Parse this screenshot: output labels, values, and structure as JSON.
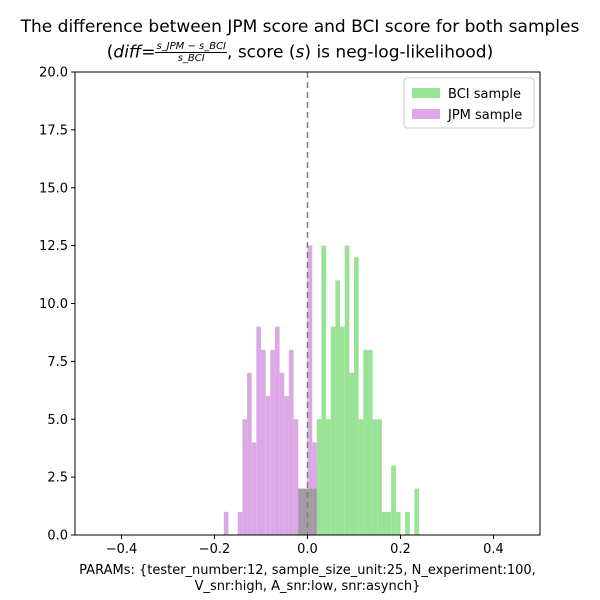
{
  "chart_data": {
    "type": "histogram",
    "title_line1": "The difference between JPM score and BCI score for both samples",
    "title_line2_prefix": "(",
    "title_diff_symbol": "diff",
    "title_equals": "=",
    "title_frac_numerator": "s_JPM − s_BCI",
    "title_frac_denominator": "s_BCI",
    "title_line2_suffix_a": ", score (",
    "title_score_symbol": "s",
    "title_line2_suffix_b": ") is neg-log-likelihood)",
    "xlabel_line1": "PARAMs: {tester_number:12, sample_size_unit:25, N_experiment:100,",
    "xlabel_line2": "V_snr:high, A_snr:low, snr:asynch}",
    "xlim": [
      -0.5,
      0.5
    ],
    "ylim": [
      0,
      20
    ],
    "xticks": [
      -0.4,
      -0.2,
      0.0,
      0.2,
      0.4
    ],
    "xtick_labels": [
      "−0.4",
      "−0.2",
      "0.0",
      "0.2",
      "0.4"
    ],
    "yticks": [
      0,
      2.5,
      5,
      7.5,
      10,
      12.5,
      15,
      17.5,
      20
    ],
    "ytick_labels": [
      "0.0",
      "2.5",
      "5.0",
      "7.5",
      "10.0",
      "12.5",
      "15.0",
      "17.5",
      "20.0"
    ],
    "reference_line": {
      "x": 0.0,
      "style": "dashed",
      "color": "#808080"
    },
    "legend_position": "upper right",
    "series": [
      {
        "name": "BCI sample",
        "color": "#98e395",
        "bin_width": 0.01,
        "bins": [
          {
            "x": -0.02,
            "count": 2
          },
          {
            "x": -0.01,
            "count": 2
          },
          {
            "x": 0.0,
            "count": 3
          },
          {
            "x": 0.01,
            "count": 3
          },
          {
            "x": 0.02,
            "count": 5
          },
          {
            "x": 0.03,
            "count": 12.5
          },
          {
            "x": 0.04,
            "count": 5
          },
          {
            "x": 0.05,
            "count": 9
          },
          {
            "x": 0.06,
            "count": 11
          },
          {
            "x": 0.07,
            "count": 9
          },
          {
            "x": 0.08,
            "count": 12.5
          },
          {
            "x": 0.09,
            "count": 7
          },
          {
            "x": 0.1,
            "count": 12
          },
          {
            "x": 0.11,
            "count": 5
          },
          {
            "x": 0.12,
            "count": 8
          },
          {
            "x": 0.13,
            "count": 8
          },
          {
            "x": 0.14,
            "count": 5
          },
          {
            "x": 0.15,
            "count": 5
          },
          {
            "x": 0.16,
            "count": 1
          },
          {
            "x": 0.17,
            "count": 1
          },
          {
            "x": 0.18,
            "count": 3
          },
          {
            "x": 0.19,
            "count": 1
          },
          {
            "x": 0.2,
            "count": 0
          },
          {
            "x": 0.21,
            "count": 1
          },
          {
            "x": 0.22,
            "count": 0
          },
          {
            "x": 0.23,
            "count": 2
          }
        ]
      },
      {
        "name": "JPM sample",
        "color": "#dca9e6",
        "bin_width": 0.01,
        "bins": [
          {
            "x": -0.18,
            "count": 1
          },
          {
            "x": -0.15,
            "count": 1
          },
          {
            "x": -0.14,
            "count": 5
          },
          {
            "x": -0.13,
            "count": 7
          },
          {
            "x": -0.12,
            "count": 4
          },
          {
            "x": -0.11,
            "count": 9
          },
          {
            "x": -0.1,
            "count": 8
          },
          {
            "x": -0.09,
            "count": 6
          },
          {
            "x": -0.08,
            "count": 8
          },
          {
            "x": -0.07,
            "count": 9
          },
          {
            "x": -0.06,
            "count": 7
          },
          {
            "x": -0.05,
            "count": 6
          },
          {
            "x": -0.04,
            "count": 8
          },
          {
            "x": -0.03,
            "count": 5
          },
          {
            "x": -0.02,
            "count": 2
          },
          {
            "x": -0.01,
            "count": 2
          },
          {
            "x": 0.0,
            "count": 12.5
          },
          {
            "x": 0.01,
            "count": 4
          },
          {
            "x": 0.02,
            "count": 0
          }
        ]
      }
    ],
    "overlap_color": "#a59aa4",
    "overlap_bins": [
      {
        "x": -0.02,
        "count": 2
      },
      {
        "x": -0.01,
        "count": 2
      },
      {
        "x": 0.0,
        "count": 2
      },
      {
        "x": 0.01,
        "count": 2
      }
    ],
    "extra_bars": [
      {
        "x": 0.0,
        "count": 12.5,
        "color": "#dca9e6"
      },
      {
        "x": 0.01,
        "count": 3,
        "color": "#dca9e6"
      },
      {
        "x": 0.01,
        "count": 1.5,
        "color": "#dca9e6"
      }
    ]
  },
  "legend": {
    "items": [
      {
        "label": "BCI sample",
        "color": "#98e395"
      },
      {
        "label": "JPM sample",
        "color": "#dca9e6"
      }
    ]
  }
}
